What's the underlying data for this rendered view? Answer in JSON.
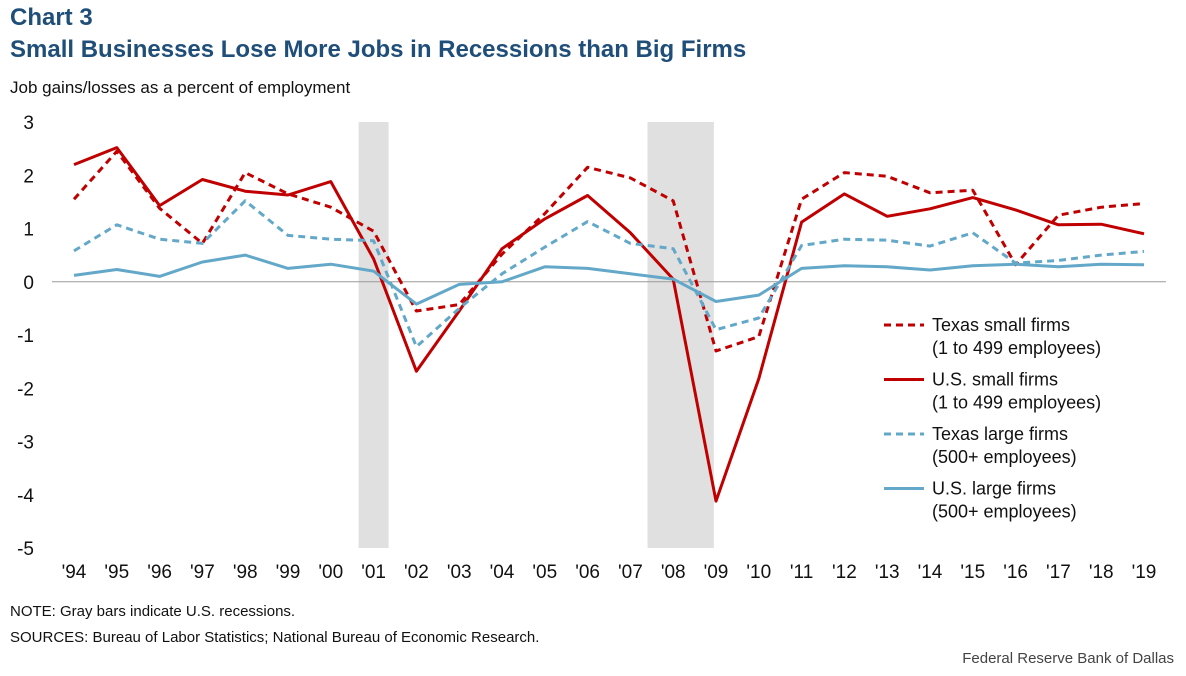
{
  "header": {
    "chart_number": "Chart 3",
    "title": "Small Businesses Lose More Jobs in Recessions than Big Firms",
    "ylabel": "Job gains/losses as a percent of employment"
  },
  "footer": {
    "note": "NOTE: Gray bars indicate U.S. recessions.",
    "sources": "SOURCES: Bureau of Labor Statistics; National Bureau of Economic Research.",
    "credit": "Federal Reserve Bank of Dallas"
  },
  "chart_data": {
    "type": "line",
    "categories": [
      "'94",
      "'95",
      "'96",
      "'97",
      "'98",
      "'99",
      "'00",
      "'01",
      "'02",
      "'03",
      "'04",
      "'05",
      "'06",
      "'07",
      "'08",
      "'09",
      "'10",
      "'11",
      "'12",
      "'13",
      "'14",
      "'15",
      "'16",
      "'17",
      "'18",
      "'19"
    ],
    "ylim": [
      -5,
      3
    ],
    "yticks": [
      3,
      2,
      1,
      0,
      -1,
      -2,
      -3,
      -4,
      -5
    ],
    "legend_position": "right",
    "recessions": [
      {
        "start": 6.65,
        "end": 7.35
      },
      {
        "start": 13.4,
        "end": 14.95
      }
    ],
    "recession_color": "#e0e0e0",
    "series": [
      {
        "name": "Texas small firms",
        "name_detail": "(1 to 499 employees)",
        "color": "#c00000",
        "dashed": true,
        "values": [
          1.55,
          2.45,
          1.38,
          0.72,
          2.05,
          1.65,
          1.4,
          0.95,
          -0.55,
          -0.43,
          0.52,
          1.28,
          2.15,
          1.95,
          1.52,
          -1.3,
          -1.03,
          1.55,
          2.05,
          1.98,
          1.67,
          1.72,
          0.32,
          1.25,
          1.4,
          1.47
        ]
      },
      {
        "name": "U.S. small firms",
        "name_detail": "(1 to 499 employees)",
        "color": "#c00000",
        "dashed": false,
        "values": [
          2.2,
          2.52,
          1.43,
          1.92,
          1.7,
          1.63,
          1.88,
          0.43,
          -1.68,
          -0.55,
          0.62,
          1.18,
          1.62,
          0.92,
          0.05,
          -4.12,
          -1.82,
          1.12,
          1.65,
          1.23,
          1.37,
          1.58,
          1.35,
          1.07,
          1.08,
          0.9
        ]
      },
      {
        "name": "Texas large firms",
        "name_detail": "(500+ employees)",
        "color": "#63a8c9",
        "dashed": true,
        "values": [
          0.58,
          1.07,
          0.8,
          0.72,
          1.52,
          0.87,
          0.8,
          0.77,
          -1.22,
          -0.5,
          0.15,
          0.65,
          1.13,
          0.72,
          0.62,
          -0.9,
          -0.68,
          0.68,
          0.8,
          0.78,
          0.67,
          0.92,
          0.35,
          0.4,
          0.5,
          0.57
        ]
      },
      {
        "name": "U.S. large firms",
        "name_detail": "(500+ employees)",
        "color": "#63a8c9",
        "dashed": false,
        "values": [
          0.12,
          0.23,
          0.1,
          0.37,
          0.5,
          0.25,
          0.33,
          0.2,
          -0.42,
          -0.05,
          0.0,
          0.28,
          0.25,
          0.15,
          0.05,
          -0.37,
          -0.25,
          0.25,
          0.3,
          0.28,
          0.22,
          0.3,
          0.33,
          0.28,
          0.33,
          0.32
        ]
      }
    ]
  }
}
